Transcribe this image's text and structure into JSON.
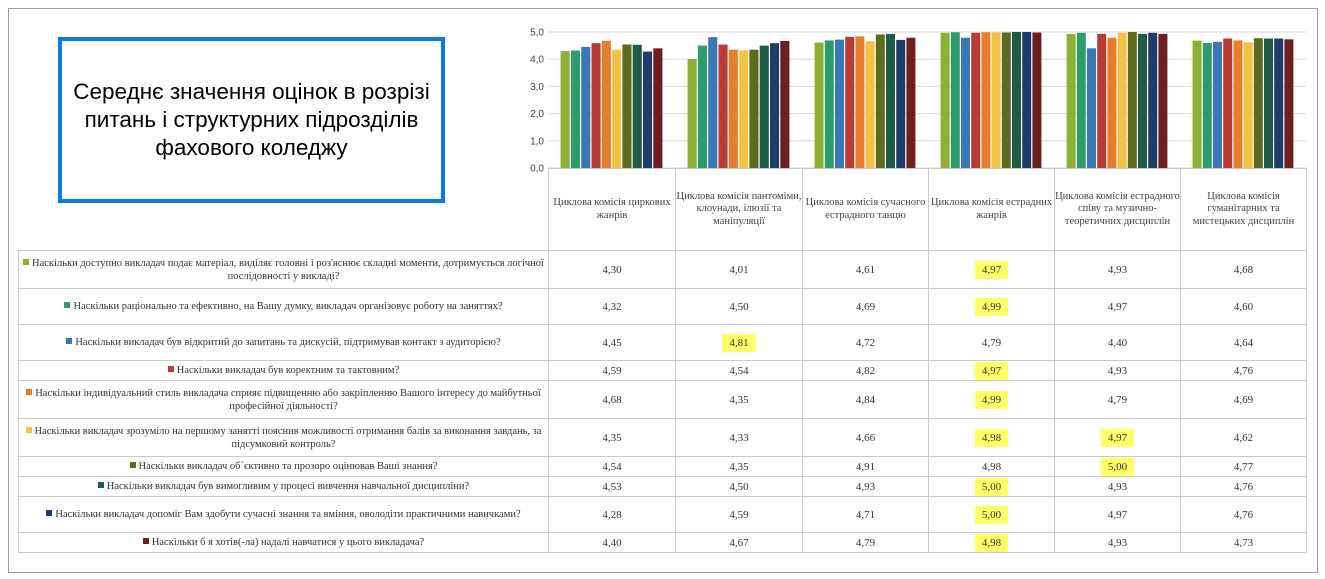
{
  "title_box": {
    "text": "Середнє значення оцінок в розрізі питань і структурних підрозділів фахового коледжу"
  },
  "chart_data": {
    "type": "bar",
    "ylim": [
      0,
      5
    ],
    "y_ticks": [
      "0,0",
      "1,0",
      "2,0",
      "3,0",
      "4,0",
      "5,0"
    ],
    "grid": true,
    "legend": "table-left",
    "categories": [
      "Циклова комісія циркових жанрів",
      "Циклова комісія пантоміми, клоунади, ілюзії та маніпуляції",
      "Циклова комісія сучасного естрадного танцю",
      "Циклова комісія естрадних жанрів",
      "Циклова комісія естрадного співу та музично-теоретичних дисциплін",
      "Циклова комісія гуманітарних та мистецьких дисциплін"
    ],
    "series": [
      {
        "name": "Наскільки доступно викладач подає матеріал, виділяє головні і  роз'яснює складні моменти, дотримується логічної послідовності  у викладі?",
        "color": "#8bb033",
        "values": [
          4.3,
          4.01,
          4.61,
          4.97,
          4.93,
          4.68
        ],
        "display": [
          "4,30",
          "4,01",
          "4,61",
          "4,97",
          "4,93",
          "4,68"
        ],
        "highlight": [
          false,
          false,
          false,
          true,
          false,
          false
        ]
      },
      {
        "name": "Наскільки раціонально та ефективно, на Вашу думку, викладач організовує роботу на заняттях?",
        "color": "#2e9b6c",
        "values": [
          4.32,
          4.5,
          4.69,
          4.99,
          4.97,
          4.6
        ],
        "display": [
          "4,32",
          "4,50",
          "4,69",
          "4,99",
          "4,97",
          "4,60"
        ],
        "highlight": [
          false,
          false,
          false,
          true,
          false,
          false
        ]
      },
      {
        "name": "Наскільки викладач був відкритий до запитань та дискусій, підтримував контакт з аудиторією?",
        "color": "#3a78b5",
        "values": [
          4.45,
          4.81,
          4.72,
          4.79,
          4.4,
          4.64
        ],
        "display": [
          "4,45",
          "4,81",
          "4,72",
          "4,79",
          "4,40",
          "4,64"
        ],
        "highlight": [
          false,
          true,
          false,
          false,
          false,
          false
        ]
      },
      {
        "name": "Наскільки викладач був коректним та тактовним?",
        "color": "#b83c35",
        "values": [
          4.59,
          4.54,
          4.82,
          4.97,
          4.93,
          4.76
        ],
        "display": [
          "4,59",
          "4,54",
          "4,82",
          "4,97",
          "4,93",
          "4,76"
        ],
        "highlight": [
          false,
          false,
          false,
          true,
          false,
          false
        ]
      },
      {
        "name": "Наскільки індивідуальний стиль викладача сприяє підвищенню або закріпленню Вашого інтересу до майбутньої професійної діяльності?",
        "color": "#e87d2c",
        "values": [
          4.68,
          4.35,
          4.84,
          4.99,
          4.79,
          4.69
        ],
        "display": [
          "4,68",
          "4,35",
          "4,84",
          "4,99",
          "4,79",
          "4,69"
        ],
        "highlight": [
          false,
          false,
          false,
          true,
          false,
          false
        ]
      },
      {
        "name": "Наскільки викладач зрозуміло на першому занятті пояснив можливості отримання балів за виконання завдань, за підсумковий контроль?",
        "color": "#f2c245",
        "values": [
          4.35,
          4.33,
          4.66,
          4.98,
          4.97,
          4.62
        ],
        "display": [
          "4,35",
          "4,33",
          "4,66",
          "4,98",
          "4,97",
          "4,62"
        ],
        "highlight": [
          false,
          false,
          false,
          true,
          true,
          false
        ]
      },
      {
        "name": "Наскільки викладач об`єктивно та прозоро оцінював Ваші знання?",
        "color": "#5c6b1e",
        "values": [
          4.54,
          4.35,
          4.91,
          4.98,
          5.0,
          4.77
        ],
        "display": [
          "4,54",
          "4,35",
          "4,91",
          "4,98",
          "5,00",
          "4,77"
        ],
        "highlight": [
          false,
          false,
          false,
          false,
          true,
          false
        ]
      },
      {
        "name": "Наскільки викладач був вимогливим у процесі вивчення навчальної дисципліни?",
        "color": "#1f5c47",
        "values": [
          4.53,
          4.5,
          4.93,
          5.0,
          4.93,
          4.76
        ],
        "display": [
          "4,53",
          "4,50",
          "4,93",
          "5,00",
          "4,93",
          "4,76"
        ],
        "highlight": [
          false,
          false,
          false,
          true,
          false,
          false
        ]
      },
      {
        "name": "Наскільки викладач допоміг Вам здобути сучасні знання та вміння, оволодіти практичними навичками?",
        "color": "#1f3d6b",
        "values": [
          4.28,
          4.59,
          4.71,
          5.0,
          4.97,
          4.76
        ],
        "display": [
          "4,28",
          "4,59",
          "4,71",
          "5,00",
          "4,97",
          "4,76"
        ],
        "highlight": [
          false,
          false,
          false,
          true,
          false,
          false
        ]
      },
      {
        "name": "Наскільки б я хотів(-ла) надалі навчатися у цього викладача?",
        "color": "#6e1f1f",
        "values": [
          4.4,
          4.67,
          4.79,
          4.98,
          4.93,
          4.73
        ],
        "display": [
          "4,40",
          "4,67",
          "4,79",
          "4,98",
          "4,93",
          "4,73"
        ],
        "highlight": [
          false,
          false,
          false,
          true,
          false,
          false
        ]
      }
    ]
  }
}
